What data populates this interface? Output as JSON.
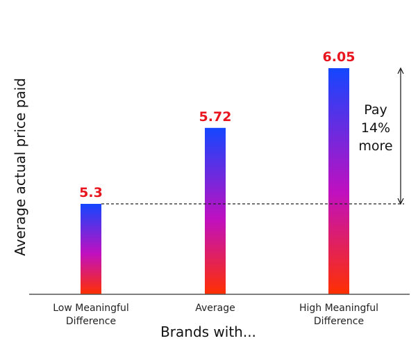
{
  "chart_data": {
    "type": "bar",
    "categories": [
      [
        "Low Meaningful",
        "Difference"
      ],
      [
        "Average"
      ],
      [
        "High Meaningful",
        "Difference"
      ]
    ],
    "values": [
      5.3,
      5.72,
      6.05
    ],
    "value_labels": [
      "5.3",
      "5.72",
      "6.05"
    ],
    "xlabel": "Brands with...",
    "ylabel": "Average actual price paid",
    "reference_line": {
      "value": 5.3,
      "style": "dashed"
    },
    "annotation": {
      "lines": [
        "Pay",
        "14%",
        "more"
      ],
      "from": 5.3,
      "to": 6.05
    },
    "grid": false,
    "colors": {
      "bar_top": "#1446ff",
      "bar_mid": "#c010c0",
      "bar_bottom": "#ff3000",
      "value_label": "#e8141e",
      "axis": "#555555"
    }
  }
}
